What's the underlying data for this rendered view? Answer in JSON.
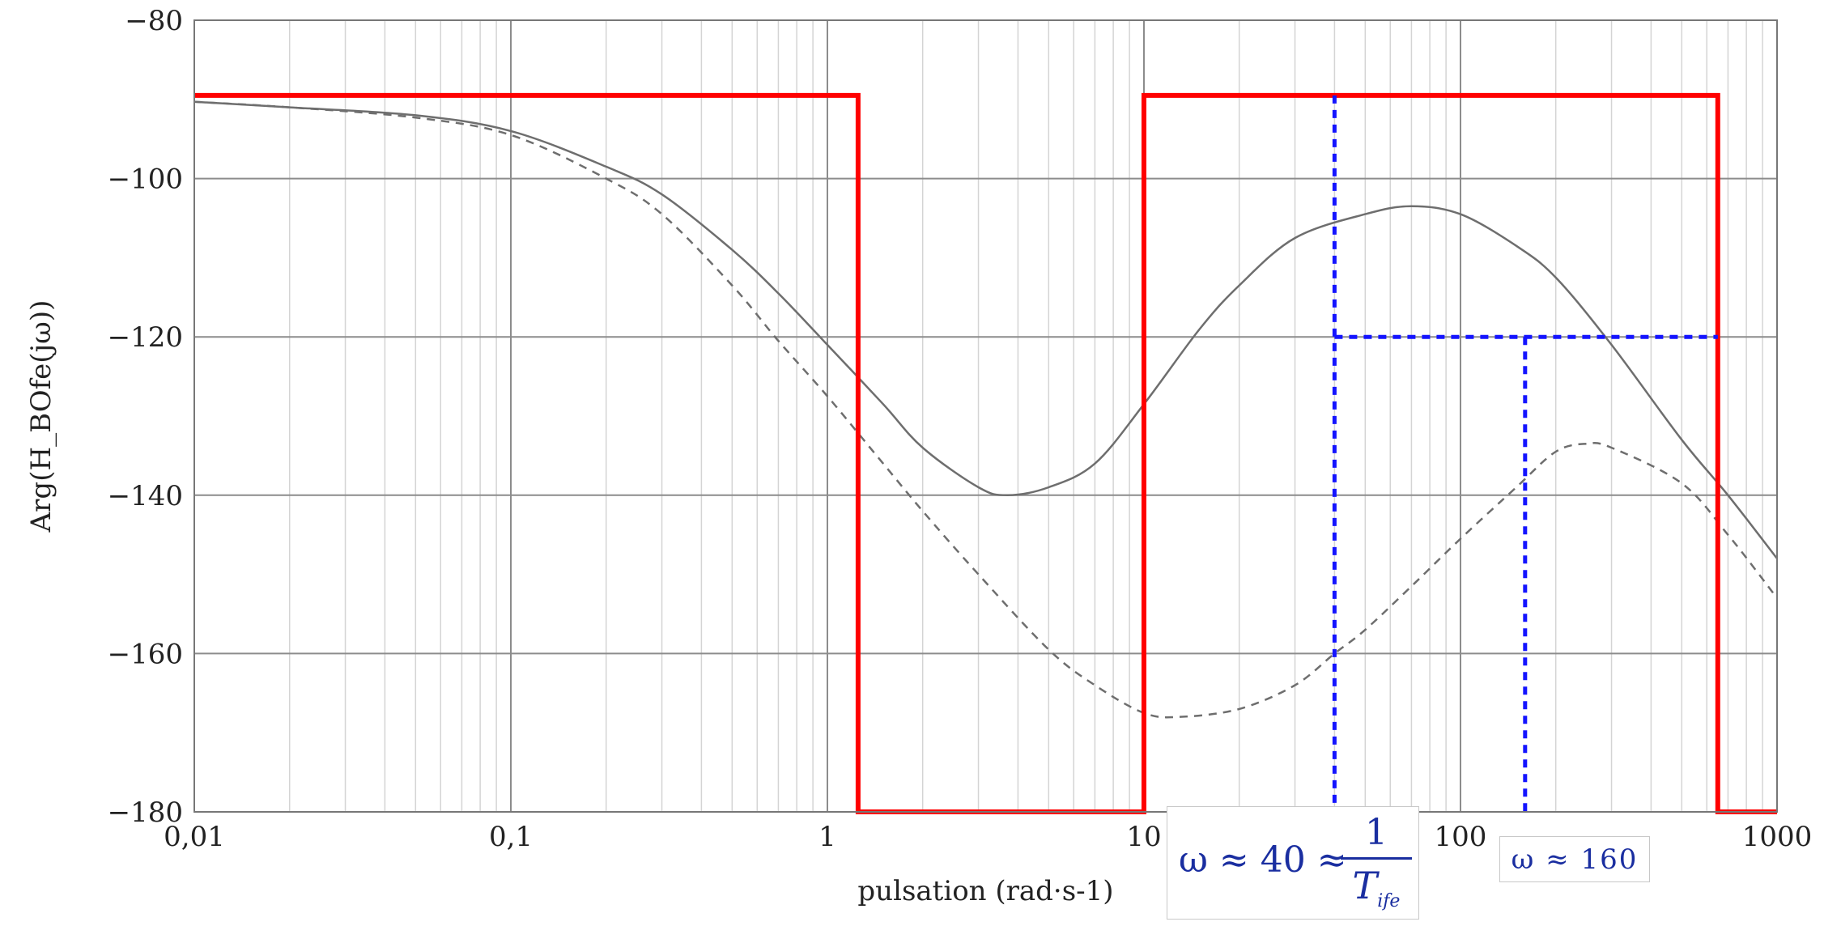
{
  "chart_data": {
    "type": "line",
    "x_scale": "log",
    "xlim": [
      0.01,
      1000
    ],
    "ylim": [
      -180,
      -80
    ],
    "grid": true,
    "xlabel": "pulsation (rad·s-1)",
    "ylabel": "Arg(H_BOfe(jω))",
    "x_ticks": [
      0.01,
      0.1,
      1,
      10,
      100,
      1000
    ],
    "x_tick_labels": [
      "0,01",
      "0,1",
      "1",
      "10",
      "100",
      "1000"
    ],
    "y_ticks": [
      -180,
      -160,
      -140,
      -120,
      -100,
      -80
    ],
    "y_tick_labels": [
      "−180",
      "−160",
      "−140",
      "−120",
      "−100",
      "−80"
    ],
    "series": [
      {
        "style": "solid",
        "color": "#6e6e6e",
        "x": [
          0.01,
          0.02,
          0.05,
          0.1,
          0.2,
          0.3,
          0.5,
          0.7,
          1,
          1.5,
          2,
          3,
          3.7,
          5,
          7,
          10,
          15,
          20,
          30,
          50,
          70,
          100,
          150,
          200,
          300,
          500,
          700,
          1000
        ],
        "y": [
          -90.3,
          -91,
          -92,
          -94,
          -98.5,
          -102,
          -109,
          -114.5,
          -121,
          -128.5,
          -134,
          -139,
          -140,
          -139,
          -136,
          -128.5,
          -119,
          -113.5,
          -107.5,
          -104.5,
          -103.5,
          -104.5,
          -108.5,
          -112.5,
          -121,
          -133,
          -140,
          -148
        ]
      },
      {
        "style": "dashed",
        "color": "#6e6e6e",
        "x": [
          0.01,
          0.02,
          0.05,
          0.1,
          0.2,
          0.3,
          0.5,
          0.7,
          1,
          1.5,
          2,
          3,
          5,
          7,
          10,
          13,
          20,
          30,
          40,
          50,
          70,
          100,
          150,
          200,
          250,
          300,
          500,
          700,
          1000
        ],
        "y": [
          -90.3,
          -91,
          -92.3,
          -94.5,
          -100,
          -104.5,
          -113.5,
          -120.5,
          -127.5,
          -136,
          -142,
          -150,
          -159.5,
          -164,
          -167.5,
          -168,
          -167,
          -164,
          -160,
          -157,
          -151.5,
          -145.5,
          -139,
          -134.5,
          -133.5,
          -134,
          -138.5,
          -145,
          -153
        ]
      }
    ],
    "overlays": [
      {
        "kind": "red-step",
        "color": "#ff0000",
        "x": [
          0.01,
          1.25,
          1.25,
          10,
          10,
          650,
          650,
          1000
        ],
        "y": [
          -89.5,
          -89.5,
          -180,
          -180,
          -89.5,
          -89.5,
          -180,
          -180
        ]
      },
      {
        "kind": "blue-dotted",
        "color": "#1414ff",
        "segments": [
          {
            "x": [
              40,
              40
            ],
            "y": [
              -89.5,
              -180
            ]
          },
          {
            "x": [
              40,
              650
            ],
            "y": [
              -120,
              -120
            ]
          },
          {
            "x": [
              160,
              160
            ],
            "y": [
              -120,
              -180
            ]
          }
        ]
      }
    ],
    "annotations": [
      {
        "id": "omega40",
        "prefix": "ω ≈ 40 ≈",
        "numerator": "1",
        "denominator": "T",
        "subscript": "ife"
      },
      {
        "id": "omega160",
        "text": "ω ≈ 160"
      }
    ]
  }
}
